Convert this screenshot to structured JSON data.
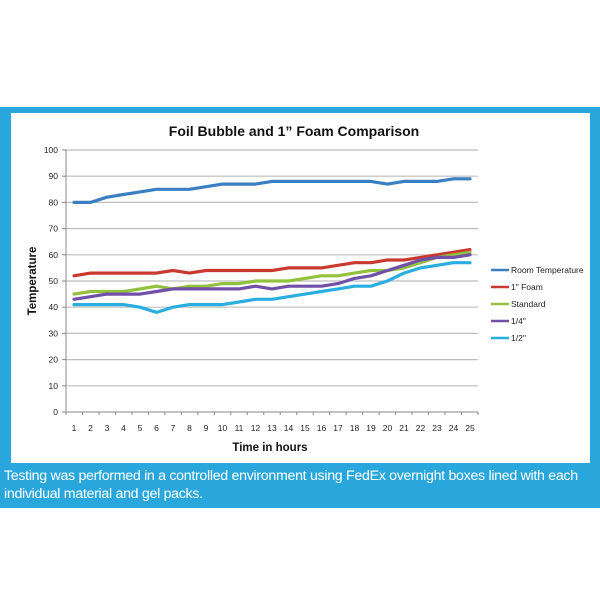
{
  "caption": "Testing was performed in a controlled environment using FedEx overnight boxes lined with each individual material and gel packs.",
  "colors": {
    "band": "#29a7dd",
    "grid": "#bdbdbd"
  },
  "chart_data": {
    "type": "line",
    "title": "Foil Bubble and 1” Foam Comparison",
    "xlabel": "Time in hours",
    "ylabel": "Temperature",
    "x": [
      1,
      2,
      3,
      4,
      5,
      6,
      7,
      8,
      9,
      10,
      11,
      12,
      13,
      14,
      15,
      16,
      17,
      18,
      19,
      20,
      21,
      22,
      23,
      24,
      25
    ],
    "x_tick_labels": [
      "1",
      "2",
      "3",
      "4",
      "5",
      "6",
      "7",
      "8",
      "9",
      "10",
      "11",
      "12",
      "13",
      "14",
      "15",
      "16",
      "17",
      "18",
      "19",
      "20",
      "21",
      "22",
      "23",
      "24",
      "25"
    ],
    "ylim": [
      0,
      100
    ],
    "y_ticks": [
      0,
      10,
      20,
      30,
      40,
      50,
      60,
      70,
      80,
      90,
      100
    ],
    "y_tick_labels": [
      "0",
      "10",
      "20",
      "30",
      "40",
      "50",
      "60",
      "70",
      "80",
      "90",
      "100"
    ],
    "grid": true,
    "legend_position": "right",
    "series": [
      {
        "name": "Room Temperature",
        "color": "#3a7fc1",
        "values": [
          80,
          80,
          82,
          83,
          84,
          85,
          85,
          85,
          86,
          87,
          87,
          87,
          88,
          88,
          88,
          88,
          88,
          88,
          88,
          87,
          88,
          88,
          88,
          89,
          89
        ]
      },
      {
        "name": "1\" Foam",
        "color": "#c8392f",
        "values": [
          52,
          53,
          53,
          53,
          53,
          53,
          54,
          53,
          54,
          54,
          54,
          54,
          54,
          55,
          55,
          55,
          56,
          57,
          57,
          58,
          58,
          59,
          60,
          61,
          62
        ]
      },
      {
        "name": "Standard",
        "color": "#92c13e",
        "values": [
          45,
          46,
          46,
          46,
          47,
          48,
          47,
          48,
          48,
          49,
          49,
          50,
          50,
          50,
          51,
          52,
          52,
          53,
          54,
          54,
          55,
          57,
          59,
          60,
          61
        ]
      },
      {
        "name": "1/4\"",
        "color": "#7050a8",
        "values": [
          43,
          44,
          45,
          45,
          45,
          46,
          47,
          47,
          47,
          47,
          47,
          48,
          47,
          48,
          48,
          48,
          49,
          51,
          52,
          54,
          56,
          58,
          59,
          59,
          60
        ]
      },
      {
        "name": "1/2\"",
        "color": "#2aaedf",
        "values": [
          41,
          41,
          41,
          41,
          40,
          38,
          40,
          41,
          41,
          41,
          42,
          43,
          43,
          44,
          45,
          46,
          47,
          48,
          48,
          50,
          53,
          55,
          56,
          57,
          57
        ]
      }
    ]
  }
}
